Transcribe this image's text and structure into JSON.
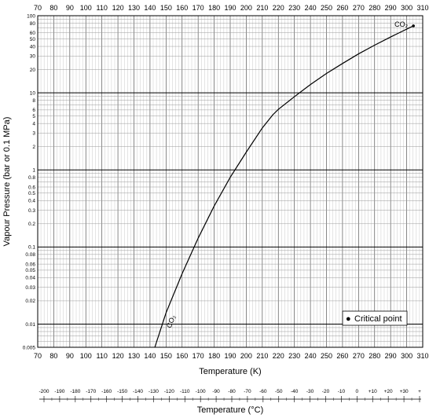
{
  "chart_data": {
    "type": "line",
    "ylabel": "Vapour Pressure (bar or 0.1 MPa)",
    "xlabel": "Temperature (K)",
    "x2label": "Temperature (°C)",
    "y_scale": "log",
    "xlim": [
      70,
      310
    ],
    "ylim": [
      0.005,
      100
    ],
    "x_ticks": [
      "70",
      "80",
      "90",
      "100",
      "110",
      "120",
      "130",
      "140",
      "150",
      "160",
      "170",
      "180",
      "190",
      "200",
      "210",
      "220",
      "230",
      "240",
      "250",
      "260",
      "270",
      "280",
      "290",
      "300",
      "310"
    ],
    "y_ticks": [
      {
        "v": 100,
        "label": "100"
      },
      {
        "v": 80,
        "label": "80"
      },
      {
        "v": 60,
        "label": "60"
      },
      {
        "v": 50,
        "label": "50"
      },
      {
        "v": 40,
        "label": "40"
      },
      {
        "v": 30,
        "label": "30"
      },
      {
        "v": 20,
        "label": "20"
      },
      {
        "v": 10,
        "label": "10"
      },
      {
        "v": 8,
        "label": "8"
      },
      {
        "v": 6,
        "label": "6"
      },
      {
        "v": 5,
        "label": "5"
      },
      {
        "v": 4,
        "label": "4"
      },
      {
        "v": 3,
        "label": "3"
      },
      {
        "v": 2,
        "label": "2"
      },
      {
        "v": 1,
        "label": "1"
      },
      {
        "v": 0.8,
        "label": "0.8"
      },
      {
        "v": 0.6,
        "label": "0.6"
      },
      {
        "v": 0.5,
        "label": "0.5"
      },
      {
        "v": 0.4,
        "label": "0.4"
      },
      {
        "v": 0.3,
        "label": "0.3"
      },
      {
        "v": 0.2,
        "label": "0.2"
      },
      {
        "v": 0.1,
        "label": "0.1"
      },
      {
        "v": 0.08,
        "label": "0.08"
      },
      {
        "v": 0.06,
        "label": "0.06"
      },
      {
        "v": 0.05,
        "label": "0.05"
      },
      {
        "v": 0.04,
        "label": "0.04"
      },
      {
        "v": 0.03,
        "label": "0.03"
      },
      {
        "v": 0.02,
        "label": "0.02"
      },
      {
        "v": 0.01,
        "label": "0.01"
      },
      {
        "v": 0.005,
        "label": "0.005"
      }
    ],
    "celsius_ticks": [
      "-200",
      "-190",
      "-180",
      "-170",
      "-160",
      "-150",
      "-140",
      "-130",
      "-120",
      "-110",
      "-100",
      "-90",
      "-80",
      "-70",
      "-60",
      "-50",
      "-40",
      "-30",
      "-20",
      "-10",
      "0",
      "+10",
      "+20",
      "+30",
      "+"
    ],
    "series": [
      {
        "name": "CO₂",
        "label_start": "CO₂",
        "label_end": "CO₂",
        "color": "#000000",
        "points": [
          [
            143,
            0.005
          ],
          [
            150,
            0.014
          ],
          [
            160,
            0.045
          ],
          [
            170,
            0.13
          ],
          [
            180,
            0.34
          ],
          [
            190,
            0.8
          ],
          [
            200,
            1.7
          ],
          [
            210,
            3.5
          ],
          [
            216.6,
            5.2
          ],
          [
            220,
            6.1
          ],
          [
            230,
            8.9
          ],
          [
            240,
            12.8
          ],
          [
            250,
            17.8
          ],
          [
            260,
            24.0
          ],
          [
            270,
            32.0
          ],
          [
            280,
            41.5
          ],
          [
            290,
            53.0
          ],
          [
            300,
            67.0
          ],
          [
            304.2,
            73.8
          ]
        ]
      }
    ],
    "critical_point": {
      "x": 304.2,
      "y": 73.8
    },
    "legend": {
      "marker": "●",
      "text": "Critical point",
      "position": "bottom-right"
    },
    "grid": true
  }
}
